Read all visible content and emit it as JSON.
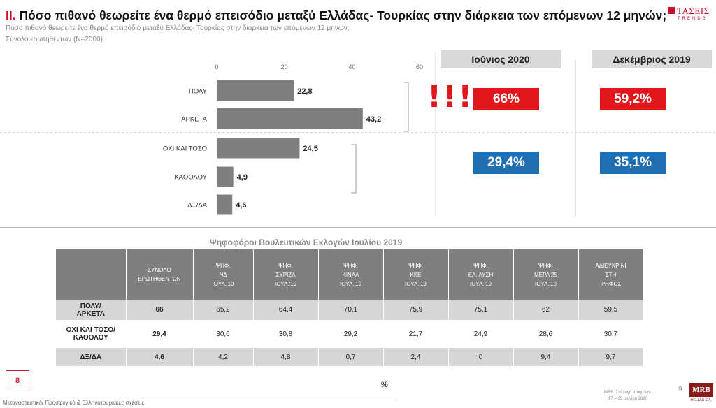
{
  "header": {
    "title_prefix": "II.",
    "title": "Πόσο πιθανό θεωρείτε ένα θερμό επεισόδιο μεταξύ Ελλάδας- Τουρκίας στην διάρκεια των επόμενων 12 μηνών;",
    "subtitle": "Πόσο πιθανό θεωρείτε ένα θερμό επεισόδιο μεταξύ Ελλάδας- Τουρκίας στην διάρκεια των επόμενων 12 μηνών;",
    "sample": "Σύνολο ερωτηθέντων (N=2000)"
  },
  "logo": {
    "text": "ΤΑΣΕΙΣ",
    "sub": "TRENDS"
  },
  "chart_data": {
    "type": "bar",
    "orientation": "horizontal",
    "categories": [
      "ΠΟΛΥ",
      "ΑΡΚΕΤΑ",
      "ΟΧΙ ΚΑΙ ΤΟΣΟ",
      "ΚΑΘΟΛΟΥ",
      "ΔΞ/ΔΑ"
    ],
    "values": [
      22.8,
      43.2,
      24.5,
      4.9,
      4.6
    ],
    "value_labels": [
      "22,8",
      "43,2",
      "24,5",
      "4,9",
      "4,6"
    ],
    "xlim": [
      0,
      60
    ],
    "xticks": [
      "0",
      "20",
      "40",
      "60"
    ],
    "bar_color": "#7f7f7f",
    "grid": false
  },
  "comparison": {
    "exclaim": "!!!",
    "current": {
      "label": "Ιούνιος 2020",
      "likely": "66%",
      "unlikely": "29,4%"
    },
    "previous": {
      "label": "Δεκέμβριος 2019",
      "likely": "59,2%",
      "unlikely": "35,1%"
    },
    "likely_color": "#e3171b",
    "unlikely_color": "#1f6fb2"
  },
  "table": {
    "title": "Ψηφοφόροι Βουλευτικών Εκλογών Ιουλίου 2019",
    "columns": [
      [
        "ΣΥΝΟΛΟ",
        "ΕΡΩΤΗΘΕΝΤΩΝ"
      ],
      [
        "ΨΗΦ.",
        "ΝΔ",
        "ΙΟΥΛ.'19"
      ],
      [
        "ΨΗΦ.",
        "ΣΥΡΙΖΑ",
        "ΙΟΥΛ.'19"
      ],
      [
        "ΨΗΦ.",
        "ΚΙΝΑΛ",
        "ΙΟΥΛ.'19"
      ],
      [
        "ΨΗΦ.",
        "ΚΚΕ",
        "ΙΟΥΛ.'19"
      ],
      [
        "ΨΗΦ.",
        "ΕΛ. ΛΥΣΗ",
        "ΙΟΥΛ.'19"
      ],
      [
        "ΨΗΦ.",
        "ΜΕΡΑ 25",
        "ΙΟΥΛ.'19"
      ],
      [
        "ΑΔΙΕΥΚΡΙΝΙ",
        "ΣΤΗ",
        "ΨΗΦΟΣ"
      ]
    ],
    "rows": [
      {
        "label": [
          "ΠΟΛΥ/",
          "ΑΡΚΕΤΑ"
        ],
        "values": [
          "66",
          "65,2",
          "64,4",
          "70,1",
          "75,9",
          "75,1",
          "62",
          "59,5"
        ]
      },
      {
        "label": [
          "ΟΧΙ ΚΑΙ ΤΟΣΟ/",
          "ΚΑΘΟΛΟΥ"
        ],
        "values": [
          "29,4",
          "30,6",
          "30,8",
          "29,2",
          "21,7",
          "24,9",
          "28,6",
          "30,7"
        ]
      },
      {
        "label": [
          "ΔΞ/ΔΑ"
        ],
        "values": [
          "4,6",
          "4,2",
          "4,8",
          "0,7",
          "2,4",
          "0",
          "9,4",
          "9,7"
        ]
      }
    ],
    "unit": "%"
  },
  "footer": {
    "page_badge": "8",
    "left_text": "Μεταναστευτικό/ Προσφυγικό & Ελληνοτουρκικές σχέσεις",
    "right_text_1": "MRB, Συλλογή στοιχείων:",
    "right_text_2": "17 – 25 Ιουνίου 2020",
    "page_number": "9",
    "mrb_logo": "MRB",
    "mrb_sub": "HELLAS S.A."
  }
}
